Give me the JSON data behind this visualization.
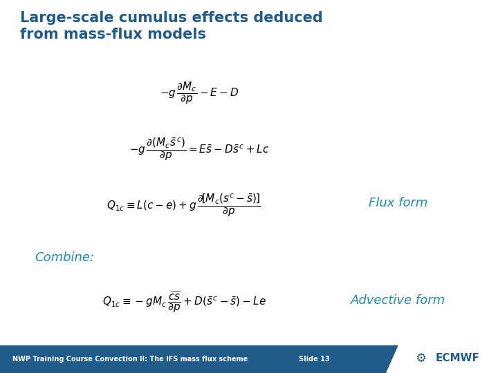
{
  "bg_color": "#ffffff",
  "title_text": "Large-scale cumulus effects deduced\nfrom mass-flux models",
  "title_color": "#1F5C8B",
  "title_fontsize": 15,
  "eq_color": "#000000",
  "label_color": "#1F8BAA",
  "flux_fontsize": 13,
  "advective_fontsize": 13,
  "combine_fontsize": 13,
  "eq_fontsize": 11,
  "footer_bg": "#1F5C8B",
  "footer_text": "NWP Training Course Convection II: The IFS mass flux scheme",
  "footer_slide": "Slide 13",
  "footer_color": "#ffffff",
  "footer_fontsize": 7,
  "ecmwf_color": "#1F5C8B",
  "ecmwf_fontsize": 11
}
